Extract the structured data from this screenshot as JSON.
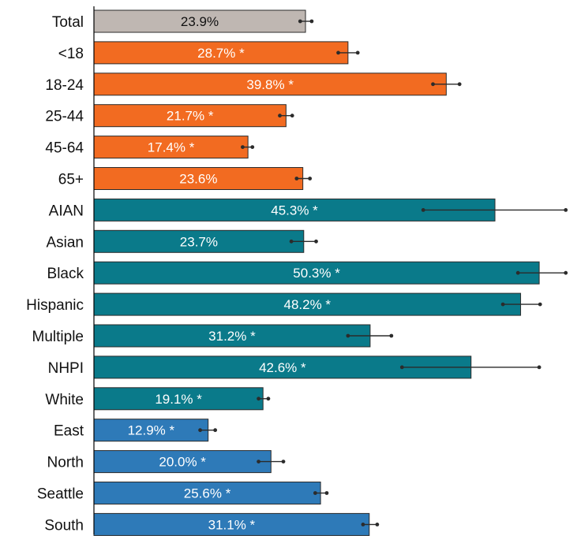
{
  "chart_data": {
    "type": "bar",
    "orientation": "horizontal",
    "title": "",
    "xlabel": "",
    "ylabel": "",
    "xlim": [
      0,
      53.5
    ],
    "grid": false,
    "legend": "none",
    "colors": {
      "total": "#bfb7b2",
      "age": "#f26b21",
      "race": "#0a7a8a",
      "region": "#2e7ab8",
      "label_dark": "#111111",
      "label_light": "#ffffff"
    },
    "categories": [
      "Total",
      "<18",
      "18-24",
      "25-44",
      "45-64",
      "65+",
      "AIAN",
      "Asian",
      "Black",
      "Hispanic",
      "Multiple",
      "NHPI",
      "White",
      "East",
      "North",
      "Seattle",
      "South"
    ],
    "groups": [
      "total",
      "age",
      "age",
      "age",
      "age",
      "age",
      "race",
      "race",
      "race",
      "race",
      "race",
      "race",
      "race",
      "region",
      "region",
      "region",
      "region"
    ],
    "values": [
      23.9,
      28.7,
      39.8,
      21.7,
      17.4,
      23.6,
      45.3,
      23.7,
      50.3,
      48.2,
      31.2,
      42.6,
      19.1,
      12.9,
      20.0,
      25.6,
      31.1
    ],
    "ci_low": [
      23.3,
      27.6,
      38.3,
      21.0,
      16.8,
      22.9,
      37.2,
      22.3,
      47.9,
      46.2,
      28.7,
      34.8,
      18.6,
      12.0,
      18.6,
      25.0,
      30.4
    ],
    "ci_high": [
      24.6,
      29.8,
      41.3,
      22.4,
      17.9,
      24.4,
      53.3,
      25.1,
      53.3,
      50.4,
      33.6,
      50.3,
      19.7,
      13.7,
      21.4,
      26.3,
      32.0
    ],
    "labels": [
      "23.9%",
      "28.7% *",
      "39.8% *",
      "21.7% *",
      "17.4% *",
      "23.6%",
      "45.3% *",
      "23.7%",
      "50.3% *",
      "48.2% *",
      "31.2% *",
      "42.6% *",
      "19.1% *",
      "12.9% *",
      "20.0% *",
      "25.6% *",
      "31.1% *"
    ]
  }
}
